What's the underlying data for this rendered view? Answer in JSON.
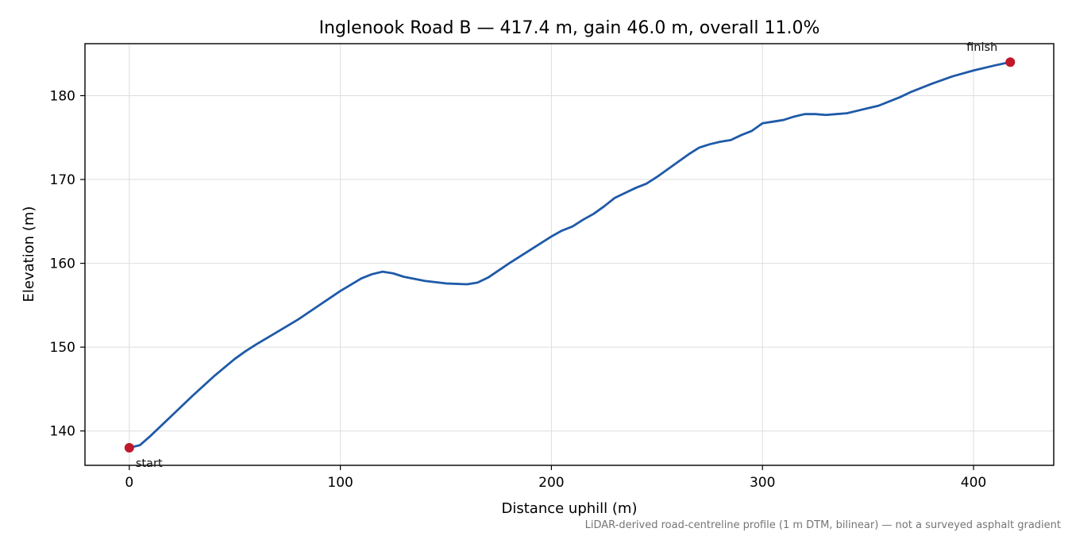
{
  "chart_data": {
    "type": "line",
    "title": "Inglenook Road B — 417.4 m, gain 46.0 m, overall 11.0%",
    "xlabel": "Distance uphill (m)",
    "ylabel": "Elevation (m)",
    "xlim": [
      -21,
      438
    ],
    "ylim": [
      135.9,
      186.2
    ],
    "xticks": [
      0,
      100,
      200,
      300,
      400
    ],
    "yticks": [
      140,
      150,
      160,
      170,
      180
    ],
    "grid": true,
    "series": [
      {
        "color": "#1f5aa8",
        "x": [
          0,
          5,
          10,
          20,
          30,
          40,
          50,
          55,
          60,
          70,
          80,
          90,
          100,
          110,
          115,
          120,
          125,
          130,
          140,
          150,
          160,
          165,
          170,
          180,
          190,
          200,
          205,
          210,
          215,
          220,
          225,
          230,
          235,
          240,
          245,
          250,
          255,
          260,
          265,
          270,
          275,
          280,
          285,
          290,
          295,
          300,
          305,
          310,
          315,
          320,
          325,
          330,
          335,
          340,
          345,
          350,
          355,
          360,
          365,
          370,
          375,
          380,
          390,
          400,
          410,
          417.4
        ],
        "y": [
          138.0,
          138.3,
          139.4,
          141.8,
          144.2,
          146.5,
          148.6,
          149.5,
          150.3,
          151.8,
          153.3,
          155.0,
          156.7,
          158.2,
          158.7,
          159.0,
          158.8,
          158.4,
          157.9,
          157.6,
          157.5,
          157.7,
          158.3,
          160.0,
          161.6,
          163.2,
          163.9,
          164.4,
          165.2,
          165.9,
          166.8,
          167.8,
          168.4,
          169.0,
          169.5,
          170.3,
          171.2,
          172.1,
          173.0,
          173.8,
          174.2,
          174.5,
          174.7,
          175.3,
          175.8,
          176.7,
          176.9,
          177.1,
          177.5,
          177.8,
          177.8,
          177.7,
          177.8,
          177.9,
          178.2,
          178.5,
          178.8,
          179.3,
          179.8,
          180.4,
          180.9,
          181.4,
          182.3,
          183.0,
          183.6,
          184.0
        ]
      }
    ],
    "points": [
      {
        "label": "start",
        "x": 0,
        "y": 138.0,
        "color": "#c0182a"
      },
      {
        "label": "finish",
        "x": 417.4,
        "y": 184.0,
        "color": "#c0182a"
      }
    ],
    "footnote": "LiDAR-derived road-centreline profile (1 m DTM, bilinear) — not a surveyed asphalt gradient"
  }
}
